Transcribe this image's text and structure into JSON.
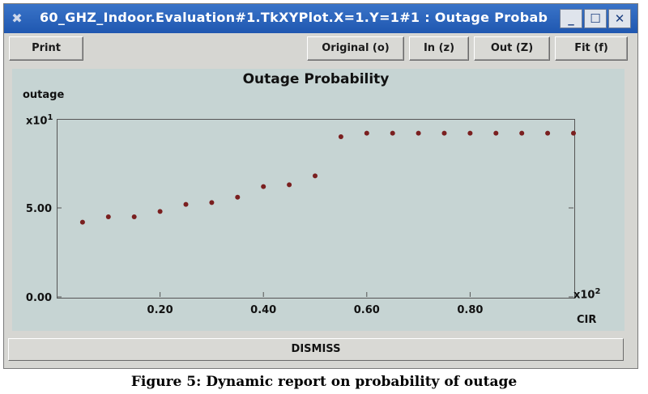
{
  "window": {
    "title": "60_GHZ_Indoor.Evaluation#1.TkXYPlot.X=1.Y=1#1 : Outage Probab",
    "minimize_glyph": "_",
    "maximize_glyph": "☐",
    "close_glyph": "✕"
  },
  "toolbar": {
    "print_label": "Print",
    "original_label": "Original (o)",
    "in_label": "In (z)",
    "out_label": "Out (Z)",
    "fit_label": "Fit (f)"
  },
  "plot": {
    "title": "Outage Probability",
    "ylabel": "outage",
    "y_multiplier_base": "x10",
    "y_multiplier_exp": "1",
    "x_multiplier_base": "x10",
    "x_multiplier_exp": "2",
    "xlabel": "CIR"
  },
  "chart_data": {
    "type": "scatter",
    "title": "Outage Probability",
    "xlabel": "CIR",
    "ylabel": "outage",
    "x_tick_labels": [
      "0.20",
      "0.40",
      "0.60",
      "0.80"
    ],
    "y_tick_labels": [
      "0.00",
      "5.00"
    ],
    "x_ticks": [
      0.2,
      0.4,
      0.6,
      0.8
    ],
    "y_ticks": [
      0.0,
      5.0
    ],
    "xlim": [
      0.0,
      1.0
    ],
    "ylim": [
      0.0,
      10.0
    ],
    "marker_color": "#7a1f1f",
    "x": [
      0.05,
      0.1,
      0.15,
      0.2,
      0.25,
      0.3,
      0.35,
      0.4,
      0.45,
      0.5,
      0.55,
      0.6,
      0.65,
      0.7,
      0.75,
      0.8,
      0.85,
      0.9,
      0.95,
      1.0
    ],
    "y": [
      4.2,
      4.5,
      4.5,
      4.8,
      5.2,
      5.3,
      5.6,
      6.2,
      6.3,
      6.8,
      9.0,
      9.2,
      9.2,
      9.2,
      9.2,
      9.2,
      9.2,
      9.2,
      9.2,
      9.2
    ]
  },
  "footer": {
    "dismiss_label": "DISMISS"
  },
  "caption": "Figure 5: Dynamic report on probability of outage"
}
